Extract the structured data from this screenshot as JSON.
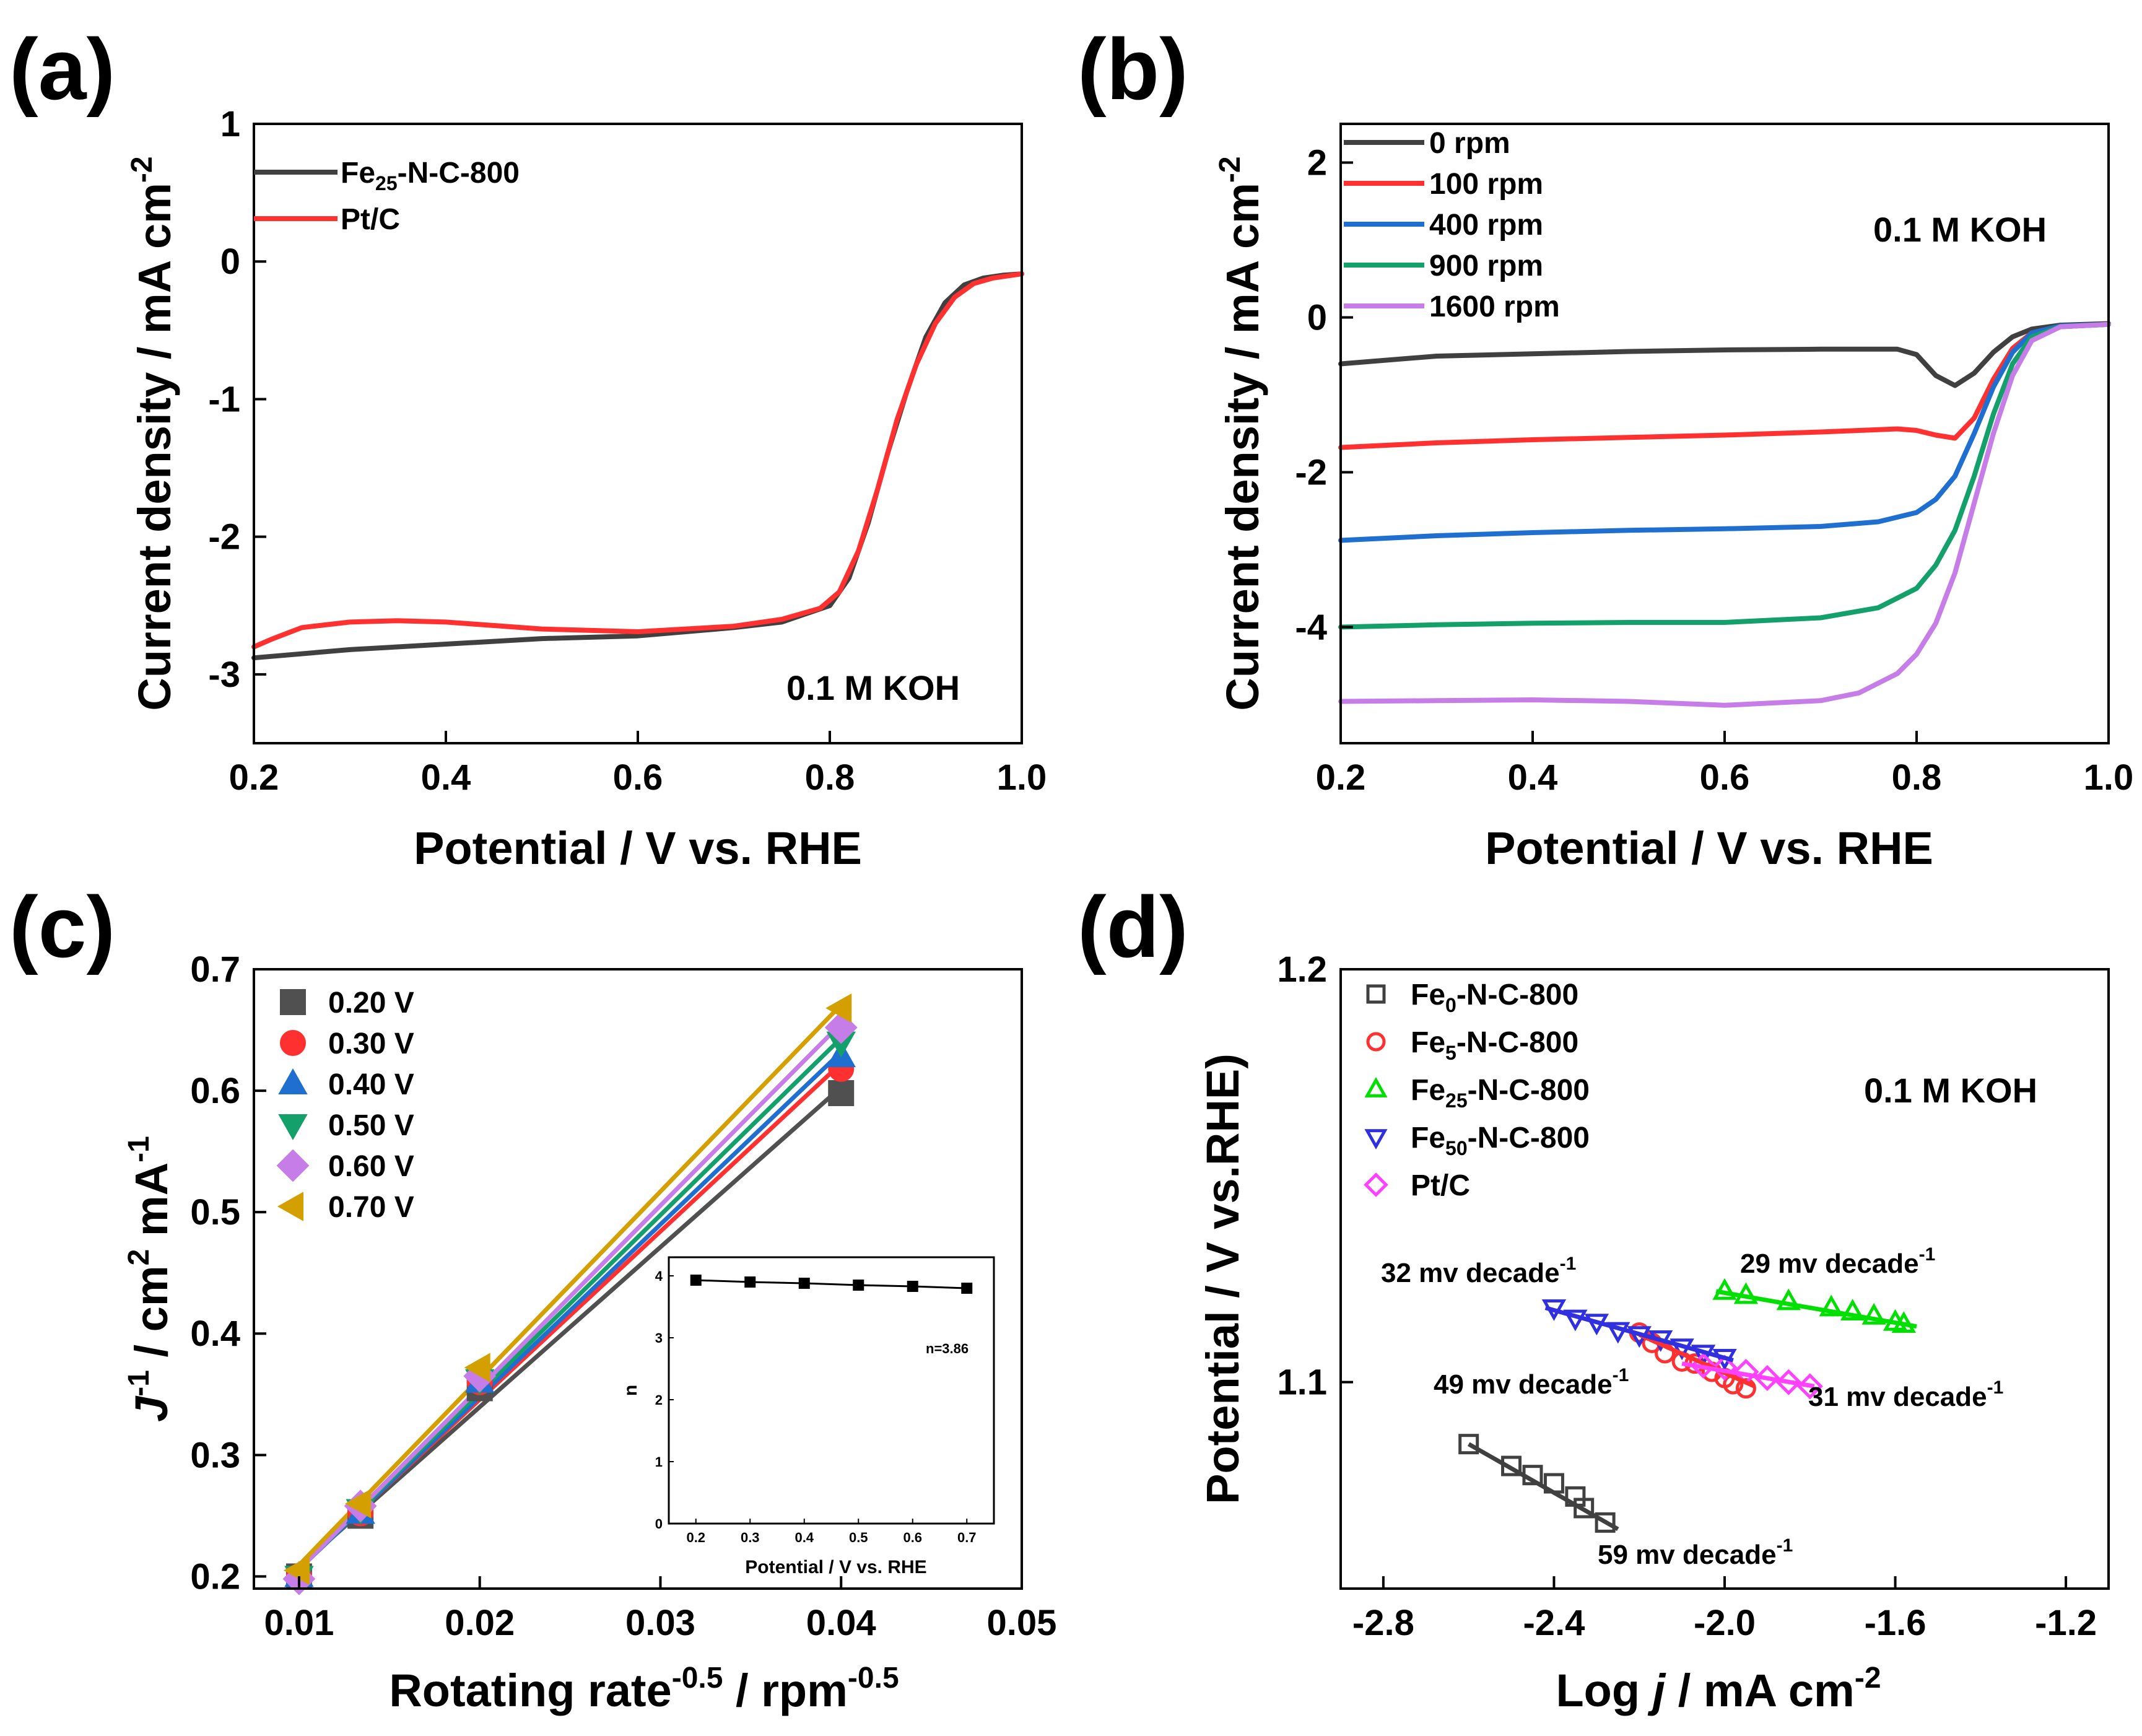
{
  "chart_data": [
    {
      "id": "a",
      "type": "line",
      "panel_label": "(a)",
      "xlabel": "Potential / V vs. RHE",
      "ylabel": "Current density / mA cm-2",
      "xlim": [
        0.2,
        1.0
      ],
      "ylim": [
        -3.5,
        1.0
      ],
      "xticks": [
        0.2,
        0.4,
        0.6,
        0.8,
        1.0
      ],
      "xtick_labels": [
        "0.2",
        "0.4",
        "0.6",
        "0.8",
        "1.0"
      ],
      "yticks": [
        -3,
        -2,
        -1,
        0,
        1
      ],
      "ytick_labels": [
        "-3",
        "-2",
        "-1",
        "0",
        "1"
      ],
      "annotation": "0.1 M KOH",
      "legend_position": "top-left",
      "series": [
        {
          "name": "Fe25-N-C-800",
          "label_main": "Fe",
          "label_sub": "25",
          "label_rest": "-N-C-800",
          "color": "#404040",
          "x": [
            0.2,
            0.3,
            0.4,
            0.5,
            0.6,
            0.7,
            0.75,
            0.8,
            0.82,
            0.84,
            0.86,
            0.88,
            0.9,
            0.92,
            0.94,
            0.96,
            0.98,
            1.0
          ],
          "y": [
            -2.88,
            -2.82,
            -2.78,
            -2.74,
            -2.72,
            -2.66,
            -2.62,
            -2.5,
            -2.3,
            -1.9,
            -1.4,
            -0.95,
            -0.55,
            -0.3,
            -0.17,
            -0.12,
            -0.1,
            -0.09
          ]
        },
        {
          "name": "Pt/C",
          "label_main": "Pt/C",
          "label_sub": "",
          "label_rest": "",
          "color": "#ff3030",
          "x": [
            0.2,
            0.22,
            0.25,
            0.3,
            0.35,
            0.4,
            0.5,
            0.6,
            0.7,
            0.75,
            0.79,
            0.81,
            0.83,
            0.85,
            0.87,
            0.89,
            0.91,
            0.93,
            0.95,
            0.97,
            1.0
          ],
          "y": [
            -2.8,
            -2.74,
            -2.66,
            -2.62,
            -2.61,
            -2.62,
            -2.67,
            -2.69,
            -2.65,
            -2.6,
            -2.52,
            -2.4,
            -2.1,
            -1.65,
            -1.15,
            -0.75,
            -0.45,
            -0.26,
            -0.16,
            -0.12,
            -0.09
          ]
        }
      ]
    },
    {
      "id": "b",
      "type": "line",
      "panel_label": "(b)",
      "xlabel": "Potential / V vs. RHE",
      "ylabel": "Current density / mA cm-2",
      "xlim": [
        0.2,
        1.0
      ],
      "ylim": [
        -5.5,
        2.5
      ],
      "xticks": [
        0.2,
        0.4,
        0.6,
        0.8,
        1.0
      ],
      "xtick_labels": [
        "0.2",
        "0.4",
        "0.6",
        "0.8",
        "1.0"
      ],
      "yticks": [
        -4,
        -2,
        0,
        2
      ],
      "ytick_labels": [
        "-4",
        "-2",
        "0",
        "2"
      ],
      "annotation": "0.1 M KOH",
      "legend_position": "top-left",
      "series": [
        {
          "name": "0 rpm",
          "color": "#404040",
          "x": [
            0.2,
            0.3,
            0.4,
            0.5,
            0.6,
            0.7,
            0.78,
            0.8,
            0.82,
            0.84,
            0.86,
            0.88,
            0.9,
            0.92,
            0.95,
            1.0
          ],
          "y": [
            -0.6,
            -0.5,
            -0.47,
            -0.44,
            -0.42,
            -0.41,
            -0.41,
            -0.48,
            -0.75,
            -0.88,
            -0.72,
            -0.45,
            -0.25,
            -0.15,
            -0.1,
            -0.08
          ]
        },
        {
          "name": "100 rpm",
          "color": "#ff3030",
          "x": [
            0.2,
            0.3,
            0.4,
            0.5,
            0.6,
            0.7,
            0.78,
            0.8,
            0.82,
            0.84,
            0.86,
            0.88,
            0.9,
            0.92,
            0.95,
            1.0
          ],
          "y": [
            -1.68,
            -1.62,
            -1.58,
            -1.55,
            -1.52,
            -1.48,
            -1.44,
            -1.46,
            -1.52,
            -1.56,
            -1.3,
            -0.8,
            -0.4,
            -0.2,
            -0.12,
            -0.09
          ]
        },
        {
          "name": "400 rpm",
          "color": "#1f6fd1",
          "x": [
            0.2,
            0.3,
            0.4,
            0.5,
            0.6,
            0.7,
            0.76,
            0.8,
            0.82,
            0.84,
            0.86,
            0.88,
            0.9,
            0.92,
            0.95,
            1.0
          ],
          "y": [
            -2.88,
            -2.82,
            -2.78,
            -2.75,
            -2.73,
            -2.7,
            -2.64,
            -2.52,
            -2.35,
            -2.05,
            -1.5,
            -0.9,
            -0.45,
            -0.2,
            -0.11,
            -0.09
          ]
        },
        {
          "name": "900 rpm",
          "color": "#14a06a",
          "x": [
            0.2,
            0.3,
            0.4,
            0.5,
            0.6,
            0.7,
            0.76,
            0.8,
            0.82,
            0.84,
            0.86,
            0.88,
            0.9,
            0.92,
            0.95,
            1.0
          ],
          "y": [
            -4.0,
            -3.97,
            -3.95,
            -3.94,
            -3.94,
            -3.88,
            -3.75,
            -3.5,
            -3.2,
            -2.75,
            -2.05,
            -1.25,
            -0.6,
            -0.25,
            -0.12,
            -0.09
          ]
        },
        {
          "name": "1600 rpm",
          "color": "#c77de8",
          "x": [
            0.2,
            0.3,
            0.4,
            0.5,
            0.6,
            0.7,
            0.74,
            0.78,
            0.8,
            0.82,
            0.84,
            0.86,
            0.88,
            0.9,
            0.92,
            0.95,
            1.0
          ],
          "y": [
            -4.96,
            -4.95,
            -4.94,
            -4.96,
            -5.01,
            -4.95,
            -4.85,
            -4.6,
            -4.35,
            -3.95,
            -3.3,
            -2.4,
            -1.5,
            -0.75,
            -0.3,
            -0.12,
            -0.09
          ]
        }
      ]
    },
    {
      "id": "c",
      "type": "scatter",
      "panel_label": "(c)",
      "xlabel": "Rotating rate-0.5 / rpm-0.5",
      "ylabel": "J-1 / cm2 mA-1",
      "xlim": [
        0.0075,
        0.05
      ],
      "ylim": [
        0.19,
        0.7
      ],
      "xticks": [
        0.01,
        0.02,
        0.03,
        0.04,
        0.05
      ],
      "xtick_labels": [
        "0.01",
        "0.02",
        "0.03",
        "0.04",
        "0.05"
      ],
      "yticks": [
        0.2,
        0.3,
        0.4,
        0.5,
        0.6,
        0.7
      ],
      "ytick_labels": [
        "0.2",
        "0.3",
        "0.4",
        "0.5",
        "0.6",
        "0.7"
      ],
      "legend_position": "top-left",
      "x": [
        0.01,
        0.0134,
        0.02,
        0.04
      ],
      "series": [
        {
          "name": "0.20 V",
          "marker": "square",
          "color": "#505050",
          "values": [
            0.2,
            0.25,
            0.355,
            0.598
          ]
        },
        {
          "name": "0.30 V",
          "marker": "circle",
          "color": "#ff3030",
          "values": [
            0.2,
            0.252,
            0.36,
            0.618
          ]
        },
        {
          "name": "0.40 V",
          "marker": "triangle-up",
          "color": "#1f6fd1",
          "values": [
            0.2,
            0.252,
            0.36,
            0.628
          ]
        },
        {
          "name": "0.50 V",
          "marker": "triangle-down",
          "color": "#14a06a",
          "values": [
            0.2,
            0.255,
            0.362,
            0.64
          ]
        },
        {
          "name": "0.60 V",
          "marker": "diamond",
          "color": "#c77de8",
          "values": [
            0.198,
            0.258,
            0.365,
            0.652
          ]
        },
        {
          "name": "0.70 V",
          "marker": "triangle-left",
          "color": "#d4a000",
          "values": [
            0.205,
            0.26,
            0.372,
            0.668
          ]
        }
      ],
      "inset": {
        "type": "line",
        "xlabel": "Potential / V vs. RHE",
        "ylabel": "n",
        "xlim": [
          0.15,
          0.75
        ],
        "ylim": [
          0,
          4.3
        ],
        "xticks": [
          0.2,
          0.3,
          0.4,
          0.5,
          0.6,
          0.7
        ],
        "xtick_labels": [
          "0.2",
          "0.3",
          "0.4",
          "0.5",
          "0.6",
          "0.7"
        ],
        "yticks": [
          0,
          1,
          2,
          3,
          4
        ],
        "ytick_labels": [
          "0",
          "1",
          "2",
          "3",
          "4"
        ],
        "x": [
          0.2,
          0.3,
          0.4,
          0.5,
          0.6,
          0.7
        ],
        "y": [
          3.93,
          3.9,
          3.88,
          3.85,
          3.83,
          3.8
        ],
        "annotation": "n=3.86"
      }
    },
    {
      "id": "d",
      "type": "scatter",
      "panel_label": "(d)",
      "xlabel": "Log j / mA cm-2",
      "ylabel": "Potential / V vs.RHE)",
      "xlim": [
        -2.9,
        -1.1
      ],
      "ylim": [
        1.05,
        1.2
      ],
      "xticks": [
        -2.8,
        -2.4,
        -2.0,
        -1.6,
        -1.2
      ],
      "xtick_labels": [
        "-2.8",
        "-2.4",
        "-2.0",
        "-1.6",
        "-1.2"
      ],
      "yticks": [
        1.1,
        1.2
      ],
      "ytick_labels": [
        "1.1",
        "1.2"
      ],
      "annotation": "0.1 M KOH",
      "legend_position": "top-left",
      "series": [
        {
          "name": "Fe0-N-C-800",
          "label_main": "Fe",
          "label_sub": "0",
          "label_rest": "-N-C-800",
          "marker": "square-open",
          "color": "#404040",
          "x": [
            -2.6,
            -2.5,
            -2.45,
            -2.4,
            -2.35,
            -2.33,
            -2.28
          ],
          "y": [
            1.085,
            1.0797,
            1.0775,
            1.0755,
            1.0723,
            1.0695,
            1.066
          ],
          "fit": [
            [
              -2.6,
              1.085
            ],
            [
              -2.25,
              1.0644
            ]
          ],
          "slope_label": "59 mv decade",
          "slope_sup": "-1"
        },
        {
          "name": "Fe5-N-C-800",
          "label_main": "Fe",
          "label_sub": "5",
          "label_rest": "-N-C-800",
          "marker": "circle-open",
          "color": "#ff3030",
          "x": [
            -2.2,
            -2.17,
            -2.14,
            -2.1,
            -2.07,
            -2.03,
            -2.0,
            -1.98,
            -1.95
          ],
          "y": [
            1.112,
            1.1095,
            1.107,
            1.105,
            1.1045,
            1.1025,
            1.101,
            1.0995,
            1.0985
          ],
          "fit": [
            [
              -2.2,
              1.1115
            ],
            [
              -1.93,
              1.099
            ]
          ],
          "slope_label": "49 mv decade",
          "slope_sup": "-1"
        },
        {
          "name": "Fe25-N-C-800",
          "label_main": "Fe",
          "label_sub": "25",
          "label_rest": "-N-C-800",
          "marker": "triangle-up-open",
          "color": "#00e000",
          "x": [
            -2.0,
            -1.95,
            -1.85,
            -1.75,
            -1.7,
            -1.65,
            -1.6,
            -1.58
          ],
          "y": [
            1.122,
            1.121,
            1.1195,
            1.118,
            1.117,
            1.116,
            1.1145,
            1.114
          ],
          "fit": [
            [
              -2.02,
              1.122
            ],
            [
              -1.55,
              1.1135
            ]
          ],
          "slope_label": "29 mv decade",
          "slope_sup": "-1"
        },
        {
          "name": "Fe50-N-C-800",
          "label_main": "Fe",
          "label_sub": "50",
          "label_rest": "-N-C-800",
          "marker": "triangle-down-open",
          "color": "#3030e0",
          "x": [
            -2.4,
            -2.35,
            -2.3,
            -2.25,
            -2.2,
            -2.15,
            -2.1,
            -2.05,
            -2.0
          ],
          "y": [
            1.118,
            1.1155,
            1.1145,
            1.1125,
            1.1115,
            1.1105,
            1.1085,
            1.107,
            1.106
          ],
          "fit": [
            [
              -2.42,
              1.118
            ],
            [
              -1.98,
              1.1053
            ]
          ],
          "slope_label": "32 mv decade",
          "slope_sup": "-1"
        },
        {
          "name": "Pt/C",
          "label_main": "Pt/C",
          "label_sub": "",
          "label_rest": "",
          "marker": "diamond-open",
          "color": "#ff40ff",
          "x": [
            -2.05,
            -2.0,
            -1.95,
            -1.9,
            -1.85,
            -1.8
          ],
          "y": [
            1.104,
            1.1035,
            1.1025,
            1.101,
            1.1,
            1.099
          ],
          "fit": [
            [
              -2.1,
              1.1045
            ],
            [
              -1.79,
              1.099
            ]
          ],
          "slope_label": "31 mv decade",
          "slope_sup": "-1"
        }
      ]
    }
  ]
}
